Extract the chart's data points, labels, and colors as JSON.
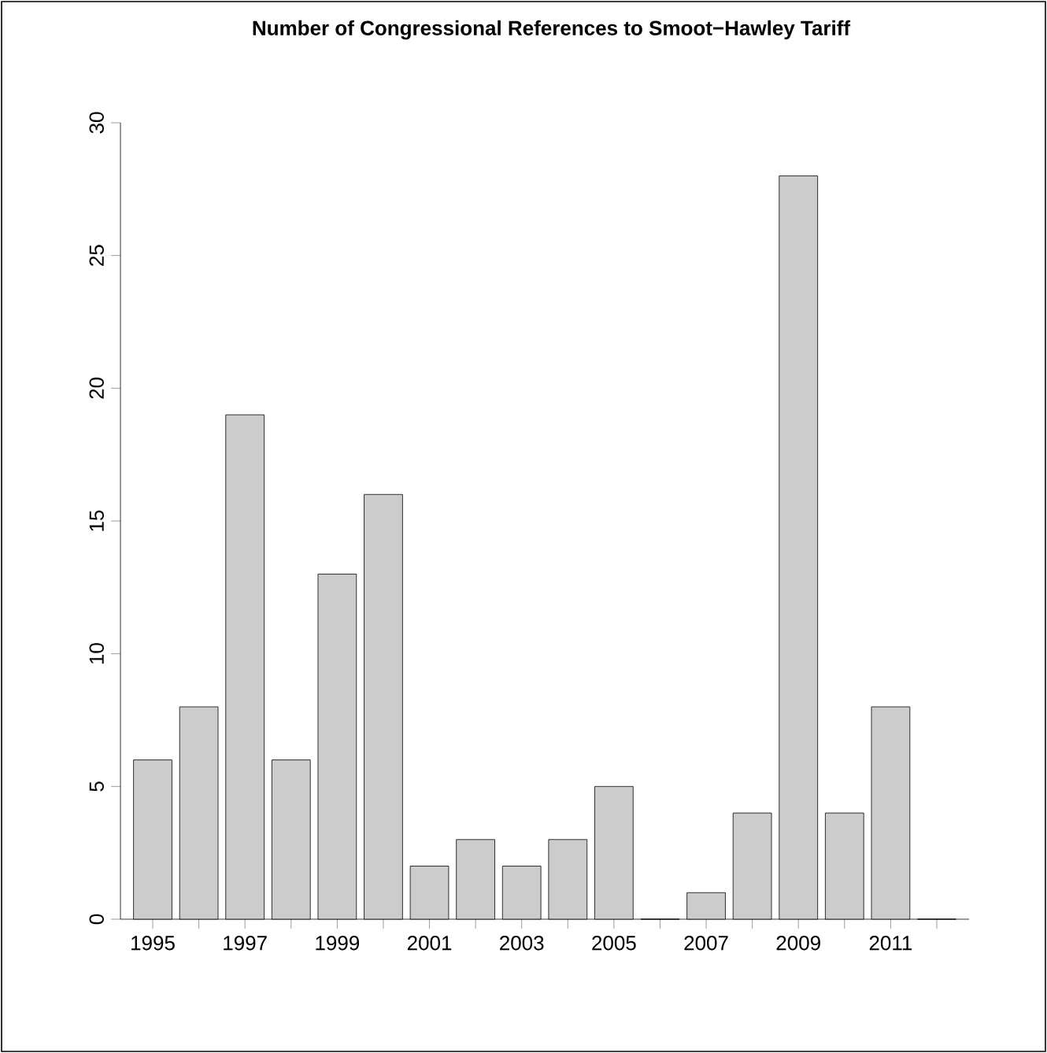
{
  "chart_data": {
    "type": "bar",
    "title": "Number of Congressional References to Smoot−Hawley Tariff",
    "categories": [
      "1995",
      null,
      "1997",
      null,
      "1999",
      null,
      "2001",
      null,
      "2003",
      null,
      "2005",
      null,
      "2007",
      null,
      "2009",
      null,
      "2011",
      null
    ],
    "values": [
      6,
      8,
      19,
      6,
      13,
      16,
      2,
      3,
      2,
      3,
      5,
      0,
      1,
      4,
      28,
      4,
      8,
      0
    ],
    "color": "#cccccc",
    "ylim": [
      0,
      30
    ],
    "yticks": [
      0,
      5,
      10,
      15,
      20,
      25,
      30
    ]
  }
}
